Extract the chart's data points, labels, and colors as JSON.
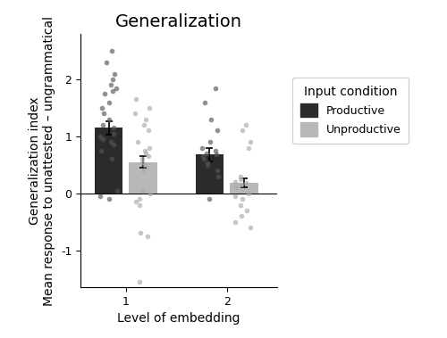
{
  "title": "Generalization",
  "xlabel": "Level of embedding",
  "ylabel": "Generalization index\nMean response to unattested – ungrammatical",
  "bar_means": {
    "level1_productive": 1.15,
    "level1_unproductive": 0.55,
    "level2_productive": 0.68,
    "level2_unproductive": 0.18
  },
  "bar_se": {
    "level1_productive": 0.12,
    "level1_unproductive": 0.1,
    "level2_productive": 0.12,
    "level2_unproductive": 0.08
  },
  "bar_colors": {
    "productive": "#2b2b2b",
    "unproductive": "#b8b8b8"
  },
  "ylim": [
    -1.65,
    2.8
  ],
  "yticks": [
    -1,
    0,
    1,
    2
  ],
  "xticklabels": [
    "1",
    "2"
  ],
  "legend_title": "Input condition",
  "legend_labels": [
    "Productive",
    "Unproductive"
  ],
  "dots_level1_productive": [
    1.15,
    1.0,
    0.9,
    0.85,
    1.3,
    1.4,
    1.2,
    1.05,
    0.95,
    0.75,
    0.6,
    0.05,
    -0.05,
    -0.1,
    2.1,
    1.9,
    1.8,
    1.75,
    1.85,
    2.0,
    1.6,
    1.5,
    2.3,
    2.5
  ],
  "dots_level1_unproductive": [
    0.55,
    0.6,
    0.5,
    0.4,
    0.7,
    0.75,
    0.65,
    0.05,
    0.0,
    -0.1,
    -0.15,
    -0.2,
    1.65,
    1.5,
    1.4,
    1.3,
    1.2,
    1.1,
    0.9,
    0.8,
    -0.7,
    -0.75,
    -1.55
  ],
  "dots_level2_productive": [
    0.68,
    0.7,
    0.6,
    0.55,
    0.8,
    0.75,
    0.65,
    0.5,
    0.4,
    0.3,
    -0.1,
    1.85,
    1.6,
    1.3,
    1.1,
    0.9
  ],
  "dots_level2_unproductive": [
    0.18,
    0.2,
    0.15,
    0.1,
    0.3,
    0.25,
    0.0,
    -0.05,
    -0.1,
    -0.2,
    -0.3,
    -0.4,
    -0.5,
    -0.6,
    0.8,
    0.9,
    1.1,
    1.2
  ],
  "dot_color_productive": "#555555",
  "dot_color_unproductive": "#aaaaaa",
  "dot_alpha": 0.65,
  "dot_size": 16,
  "bar_width": 0.28,
  "background_color": "#ffffff",
  "title_fontsize": 14,
  "axis_label_fontsize": 10,
  "tick_fontsize": 9,
  "legend_fontsize": 9,
  "legend_title_fontsize": 10
}
